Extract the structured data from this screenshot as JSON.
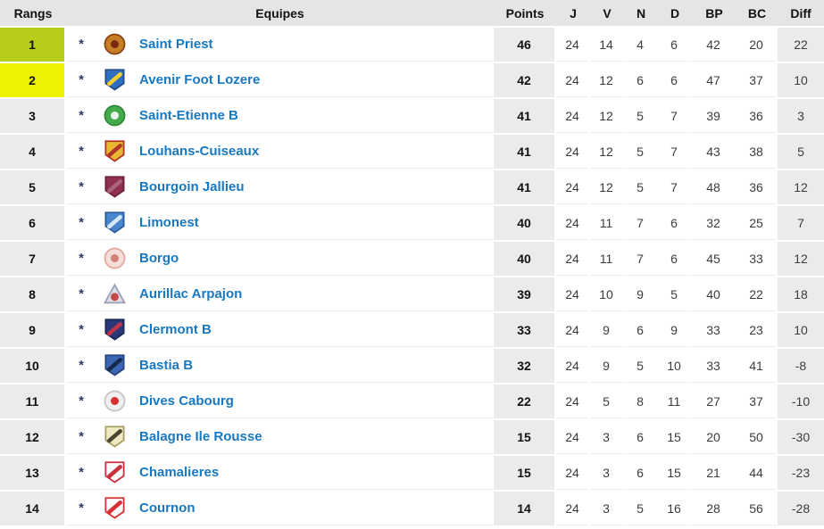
{
  "colors": {
    "header_bg": "#e5e5e5",
    "cell_bg": "#ebebeb",
    "rank1_bg": "#b8cc1c",
    "rank2_bg": "#eef200",
    "team_link": "#1878c0"
  },
  "star_marker": "*",
  "header": {
    "columns": [
      "Rangs",
      "Equipes",
      "Points",
      "J",
      "V",
      "N",
      "D",
      "BP",
      "BC",
      "Diff"
    ]
  },
  "rows": [
    {
      "rank": "1",
      "team": "Saint Priest",
      "points": "46",
      "j": "24",
      "v": "14",
      "n": "4",
      "d": "6",
      "bp": "42",
      "bc": "20",
      "diff": "22",
      "highlight": "rank1_bg",
      "logo": {
        "type": "circle",
        "bg": "#c77e28",
        "border": "#8a4312",
        "accent": "#7a2a10"
      }
    },
    {
      "rank": "2",
      "team": "Avenir Foot Lozere",
      "points": "42",
      "j": "24",
      "v": "12",
      "n": "6",
      "d": "6",
      "bp": "47",
      "bc": "37",
      "diff": "10",
      "highlight": "rank2_bg",
      "logo": {
        "type": "shield",
        "bg": "#2e6fc2",
        "border": "#274f86",
        "accent": "#f2cf2a"
      }
    },
    {
      "rank": "3",
      "team": "Saint-Etienne B",
      "points": "41",
      "j": "24",
      "v": "12",
      "n": "5",
      "d": "7",
      "bp": "39",
      "bc": "36",
      "diff": "3",
      "highlight": null,
      "logo": {
        "type": "circle",
        "bg": "#44ab4c",
        "border": "#2f8a38",
        "accent": "#eaf4ea"
      }
    },
    {
      "rank": "4",
      "team": "Louhans-Cuiseaux",
      "points": "41",
      "j": "24",
      "v": "12",
      "n": "5",
      "d": "7",
      "bp": "43",
      "bc": "38",
      "diff": "5",
      "highlight": null,
      "logo": {
        "type": "shield",
        "bg": "#e8b832",
        "border": "#b03428",
        "accent": "#b03428"
      }
    },
    {
      "rank": "5",
      "team": "Bourgoin Jallieu",
      "points": "41",
      "j": "24",
      "v": "12",
      "n": "5",
      "d": "7",
      "bp": "48",
      "bc": "36",
      "diff": "12",
      "highlight": null,
      "logo": {
        "type": "shield",
        "bg": "#8e3050",
        "border": "#702040",
        "accent": "#a86478"
      }
    },
    {
      "rank": "6",
      "team": "Limonest",
      "points": "40",
      "j": "24",
      "v": "11",
      "n": "7",
      "d": "6",
      "bp": "32",
      "bc": "25",
      "diff": "7",
      "highlight": null,
      "logo": {
        "type": "shield",
        "bg": "#4a86cc",
        "border": "#2c5c9c",
        "accent": "#d8e8f8"
      }
    },
    {
      "rank": "7",
      "team": "Borgo",
      "points": "40",
      "j": "24",
      "v": "11",
      "n": "7",
      "d": "6",
      "bp": "45",
      "bc": "33",
      "diff": "12",
      "highlight": null,
      "logo": {
        "type": "circle",
        "bg": "#f5ded8",
        "border": "#e2a89e",
        "accent": "#cf8278"
      }
    },
    {
      "rank": "8",
      "team": "Aurillac Arpajon",
      "points": "39",
      "j": "24",
      "v": "10",
      "n": "9",
      "d": "5",
      "bp": "40",
      "bc": "22",
      "diff": "18",
      "highlight": null,
      "logo": {
        "type": "triangle",
        "bg": "#dcdee8",
        "border": "#9aa0b4",
        "accent": "#c44848"
      }
    },
    {
      "rank": "9",
      "team": "Clermont B",
      "points": "33",
      "j": "24",
      "v": "9",
      "n": "6",
      "d": "9",
      "bp": "33",
      "bc": "23",
      "diff": "10",
      "highlight": null,
      "logo": {
        "type": "shield",
        "bg": "#2a3878",
        "border": "#1c2756",
        "accent": "#c03448"
      }
    },
    {
      "rank": "10",
      "team": "Bastia B",
      "points": "32",
      "j": "24",
      "v": "9",
      "n": "5",
      "d": "10",
      "bp": "33",
      "bc": "41",
      "diff": "-8",
      "highlight": null,
      "logo": {
        "type": "shield",
        "bg": "#3a66b4",
        "border": "#26457e",
        "accent": "#16294b"
      }
    },
    {
      "rank": "11",
      "team": "Dives Cabourg",
      "points": "22",
      "j": "24",
      "v": "5",
      "n": "8",
      "d": "11",
      "bp": "27",
      "bc": "37",
      "diff": "-10",
      "highlight": null,
      "logo": {
        "type": "circle",
        "bg": "#f0f0f0",
        "border": "#c4c4c4",
        "accent": "#d83030"
      }
    },
    {
      "rank": "12",
      "team": "Balagne Ile Rousse",
      "points": "15",
      "j": "24",
      "v": "3",
      "n": "6",
      "d": "15",
      "bp": "20",
      "bc": "50",
      "diff": "-30",
      "highlight": null,
      "logo": {
        "type": "shield",
        "bg": "#f0e9c2",
        "border": "#a8a060",
        "accent": "#4a4632"
      }
    },
    {
      "rank": "13",
      "team": "Chamalieres",
      "points": "15",
      "j": "24",
      "v": "3",
      "n": "6",
      "d": "15",
      "bp": "21",
      "bc": "44",
      "diff": "-23",
      "highlight": null,
      "logo": {
        "type": "shield",
        "bg": "#fafafa",
        "border": "#c8303c",
        "accent": "#c8303c"
      }
    },
    {
      "rank": "14",
      "team": "Cournon",
      "points": "14",
      "j": "24",
      "v": "3",
      "n": "5",
      "d": "16",
      "bp": "28",
      "bc": "56",
      "diff": "-28",
      "highlight": null,
      "logo": {
        "type": "shield",
        "bg": "#fdfdfd",
        "border": "#d83030",
        "accent": "#d83030"
      }
    }
  ]
}
